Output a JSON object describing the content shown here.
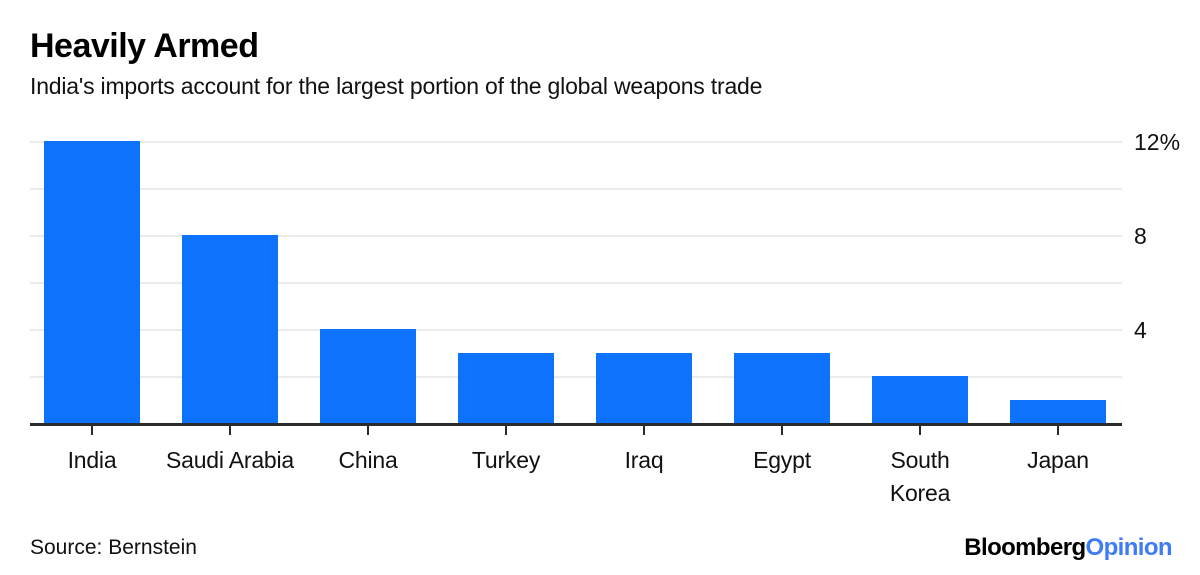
{
  "header": {
    "title": "Heavily Armed",
    "subtitle": "India's imports account for the largest portion of the global weapons trade"
  },
  "chart_data": {
    "type": "bar",
    "title": "Heavily Armed",
    "subtitle": "India's imports account for the largest portion of the global weapons trade",
    "categories": [
      "India",
      "Saudi Arabia",
      "China",
      "Turkey",
      "Iraq",
      "Egypt",
      "South\nKorea",
      "Japan"
    ],
    "values": [
      12,
      8,
      4,
      3,
      3,
      3,
      2,
      1
    ],
    "unit": "%",
    "ylim": [
      0,
      12
    ],
    "grid": true,
    "gridline_values": [
      2,
      4,
      6,
      8,
      10,
      12
    ],
    "y_axis_side": "right",
    "y_tick_labels": [
      {
        "value": 12,
        "text": "12%"
      },
      {
        "value": 8,
        "text": "8"
      },
      {
        "value": 4,
        "text": "4"
      }
    ],
    "legend": "none",
    "source": "Source: Bernstein"
  },
  "footer": {
    "source": "Source: Bernstein",
    "logo_black": "Bloomberg",
    "logo_blue": "Opinion"
  },
  "colors": {
    "bar": "#0d73fc",
    "axis": "#2b2b2b",
    "gridline": "#ebebeb",
    "logo_blue": "#3d7bf7"
  }
}
